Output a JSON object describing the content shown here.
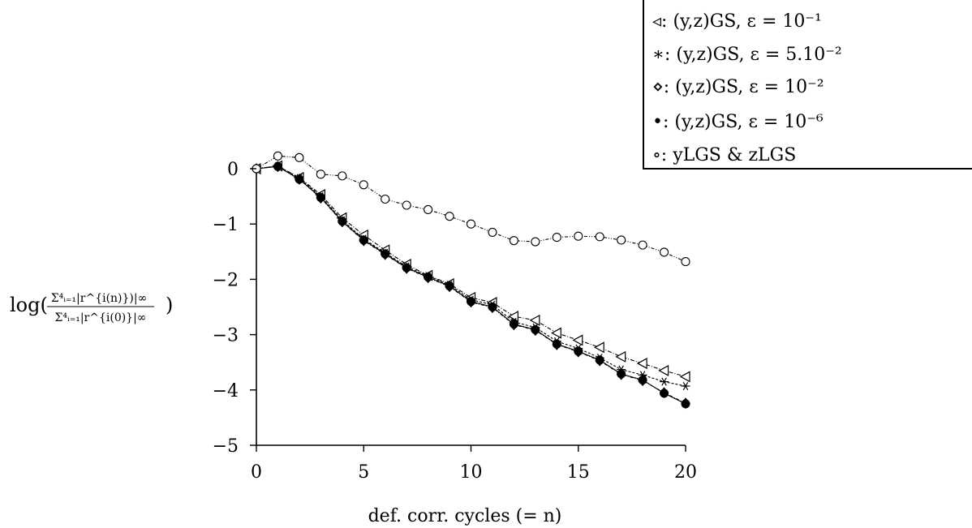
{
  "chart_data": {
    "type": "line",
    "xlabel": "def. corr. cycles (= n)",
    "ylabel": {
      "prefix": "log(",
      "numerator": "Σ⁴ᵢ₌₁|r^{i(n)})|∞",
      "denominator": "Σ⁴ᵢ₌₁|r^{i(0)}|∞",
      "suffix": ")"
    },
    "xlim": [
      0,
      20
    ],
    "ylim": [
      -5,
      0
    ],
    "xticks": [
      0,
      5,
      10,
      15,
      20
    ],
    "xtick_labels": [
      "0",
      "5",
      "10",
      "15",
      "20"
    ],
    "yticks": [
      0,
      -1,
      -2,
      -3,
      -4,
      -5
    ],
    "ytick_labels": [
      "0",
      "−1",
      "−2",
      "−3",
      "−4",
      "−5"
    ],
    "grid": false,
    "legend_position": "top-right",
    "x": [
      0,
      1,
      2,
      3,
      4,
      5,
      6,
      7,
      8,
      9,
      10,
      11,
      12,
      13,
      14,
      15,
      16,
      17,
      18,
      19,
      20
    ],
    "series": [
      {
        "name": "◃: (y,z)GS, ε = 10⁻¹",
        "marker": "triangle-left",
        "values": [
          0,
          0.05,
          -0.16,
          -0.47,
          -0.89,
          -1.2,
          -1.47,
          -1.73,
          -1.93,
          -2.08,
          -2.33,
          -2.42,
          -2.67,
          -2.74,
          -2.97,
          -3.1,
          -3.23,
          -3.4,
          -3.52,
          -3.65,
          -3.76
        ]
      },
      {
        "name": "∗: (y,z)GS, ε = 5.10⁻²",
        "marker": "asterisk",
        "values": [
          0,
          0.05,
          -0.17,
          -0.5,
          -0.93,
          -1.27,
          -1.52,
          -1.77,
          -1.94,
          -2.1,
          -2.37,
          -2.46,
          -2.77,
          -2.87,
          -3.12,
          -3.25,
          -3.42,
          -3.63,
          -3.73,
          -3.85,
          -3.93
        ]
      },
      {
        "name": "⋄: (y,z)GS, ε = 10⁻²",
        "marker": "diamond",
        "values": [
          0,
          0.04,
          -0.19,
          -0.53,
          -0.96,
          -1.3,
          -1.55,
          -1.8,
          -1.97,
          -2.13,
          -2.41,
          -2.51,
          -2.82,
          -2.92,
          -3.18,
          -3.31,
          -3.47,
          -3.72,
          -3.83,
          -4.05,
          -4.24
        ]
      },
      {
        "name": "•: (y,z)GS, ε = 10⁻⁶",
        "marker": "filled-circle",
        "values": [
          0,
          0.04,
          -0.19,
          -0.52,
          -0.95,
          -1.29,
          -1.54,
          -1.79,
          -1.96,
          -2.12,
          -2.4,
          -2.5,
          -2.81,
          -2.91,
          -3.17,
          -3.3,
          -3.46,
          -3.71,
          -3.82,
          -4.06,
          -4.25
        ]
      },
      {
        "name": "∘: yLGS & zLGS",
        "marker": "open-circle",
        "values": [
          0,
          0.23,
          0.2,
          -0.1,
          -0.13,
          -0.29,
          -0.55,
          -0.66,
          -0.74,
          -0.86,
          -1.0,
          -1.15,
          -1.3,
          -1.32,
          -1.24,
          -1.22,
          -1.23,
          -1.29,
          -1.38,
          -1.51,
          -1.68
        ]
      }
    ]
  }
}
